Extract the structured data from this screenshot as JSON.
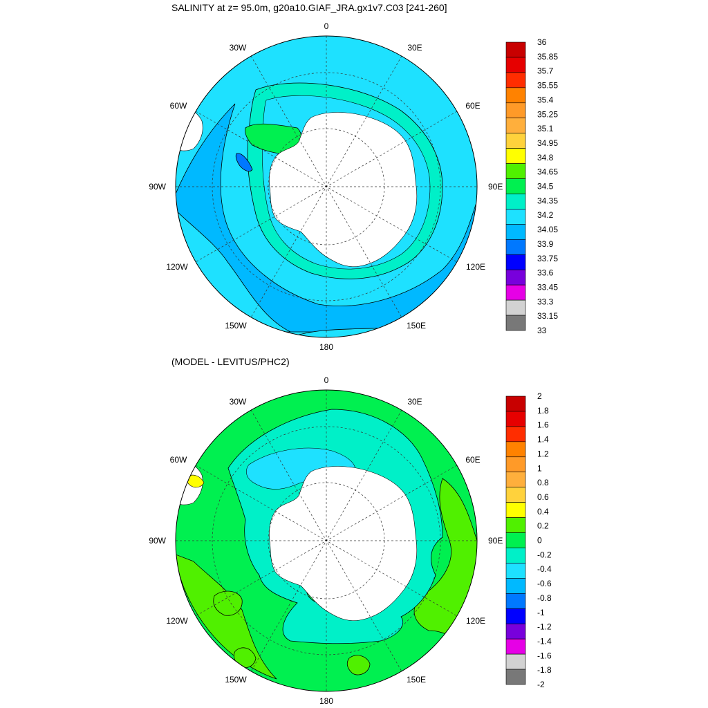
{
  "colors": {
    "ocean_top": "#1ee1ff",
    "land": "#ffffff",
    "land_outline": "#000000"
  },
  "panels": [
    {
      "id": "top",
      "title": "SALINITY at z=  95.0m, g20a10.GIAF_JRA.gx1v7.C03 [241-260]",
      "lon_labels": [
        "0",
        "30E",
        "60E",
        "90E",
        "120E",
        "150E",
        "180",
        "150W",
        "120W",
        "90W",
        "60W",
        "30W"
      ],
      "colorbar": {
        "labels": [
          "36",
          "35.85",
          "35.7",
          "35.55",
          "35.4",
          "35.25",
          "35.1",
          "34.95",
          "34.8",
          "34.65",
          "34.5",
          "34.35",
          "34.2",
          "34.05",
          "33.9",
          "33.75",
          "33.6",
          "33.45",
          "33.3",
          "33.15",
          "33"
        ],
        "colors": [
          "#c80000",
          "#e60000",
          "#ff2d00",
          "#ff8200",
          "#ff9a28",
          "#ffaf3c",
          "#ffd23c",
          "#ffff00",
          "#50f000",
          "#00f050",
          "#00f0c8",
          "#1ee1ff",
          "#00b9ff",
          "#0078ff",
          "#0000ff",
          "#7800dc",
          "#e600e6",
          "#d2d2d2",
          "#787878"
        ]
      }
    },
    {
      "id": "bottom",
      "title": "(MODEL - LEVITUS/PHC2)",
      "lon_labels": [
        "0",
        "30E",
        "60E",
        "90E",
        "120E",
        "150E",
        "180",
        "150W",
        "120W",
        "90W",
        "60W",
        "30W"
      ],
      "colorbar": {
        "labels": [
          "2",
          "1.8",
          "1.6",
          "1.4",
          "1.2",
          "1",
          "0.8",
          "0.6",
          "0.4",
          "0.2",
          "0",
          "-0.2",
          "-0.4",
          "-0.6",
          "-0.8",
          "-1",
          "-1.2",
          "-1.4",
          "-1.6",
          "-1.8",
          "-2"
        ],
        "colors": [
          "#c80000",
          "#e60000",
          "#ff2d00",
          "#ff8200",
          "#ff9a28",
          "#ffaf3c",
          "#ffd23c",
          "#ffff00",
          "#50f000",
          "#00f050",
          "#00f0c8",
          "#1ee1ff",
          "#00b9ff",
          "#0078ff",
          "#0000ff",
          "#7800dc",
          "#e600e6",
          "#d2d2d2",
          "#787878"
        ]
      }
    }
  ]
}
